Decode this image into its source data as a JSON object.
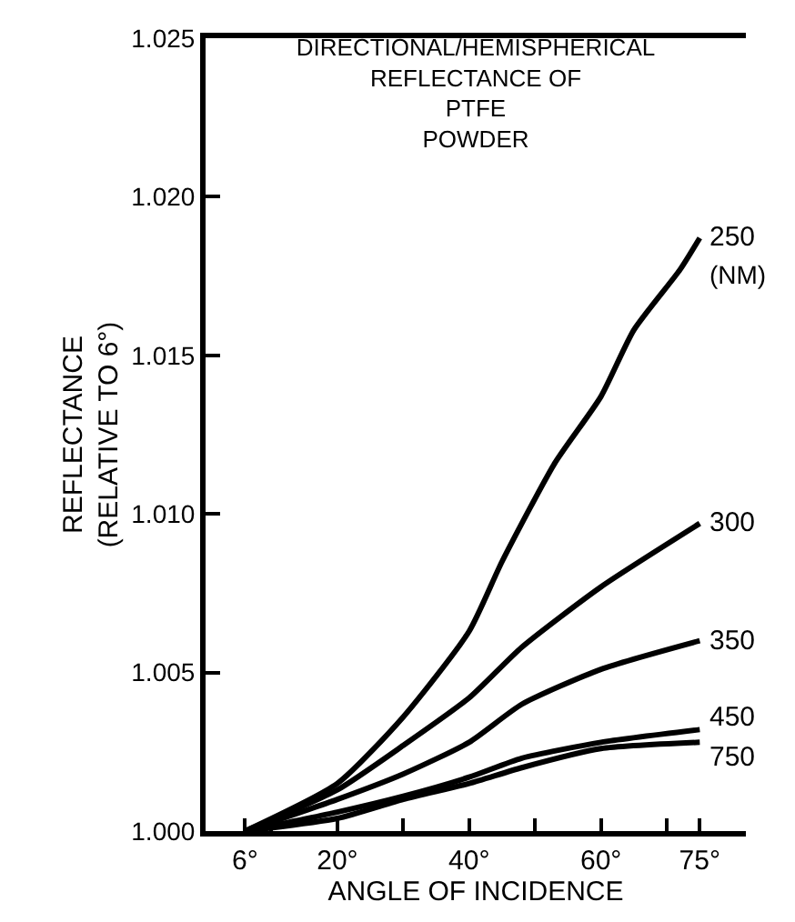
{
  "chart_data": {
    "type": "line",
    "title": "DIRECTIONAL/HEMISPHERICAL\nREFLECTANCE OF\nPTFE\nPOWDER",
    "xlabel": "ANGLE OF INCIDENCE",
    "ylabel": "REFLECTANCE\n(RELATIVE TO 6°)",
    "x": [
      6,
      20,
      30,
      40,
      48,
      60,
      75
    ],
    "series": [
      {
        "name": "250",
        "color": "#000000",
        "x": [
          6,
          20,
          30,
          40,
          45,
          53,
          60,
          65,
          72,
          75
        ],
        "values": [
          1.0,
          1.0015,
          1.0036,
          1.0063,
          1.0085,
          1.0116,
          1.0137,
          1.0158,
          1.0177,
          1.0187
        ]
      },
      {
        "name": "300",
        "color": "#000000",
        "values": [
          1.0,
          1.0013,
          1.0027,
          1.0042,
          1.0058,
          1.0077,
          1.0097
        ]
      },
      {
        "name": "350",
        "color": "#000000",
        "values": [
          1.0,
          1.001,
          1.0018,
          1.0028,
          1.004,
          1.0051,
          1.006
        ]
      },
      {
        "name": "450",
        "color": "#000000",
        "values": [
          1.0,
          1.0006,
          1.0011,
          1.0017,
          1.0023,
          1.0028,
          1.0032
        ]
      },
      {
        "name": "750",
        "color": "#000000",
        "values": [
          1.0,
          1.0004,
          1.001,
          1.0015,
          1.002,
          1.0026,
          1.0028
        ]
      }
    ],
    "annotations": [
      "(NM)"
    ],
    "xlim": [
      0,
      82
    ],
    "xticks": [
      {
        "value": 6,
        "label": "6°"
      },
      {
        "value": 10,
        "label": null
      },
      {
        "value": 20,
        "label": "20°"
      },
      {
        "value": 30,
        "label": null
      },
      {
        "value": 40,
        "label": "40°"
      },
      {
        "value": 50,
        "label": null
      },
      {
        "value": 60,
        "label": "60°"
      },
      {
        "value": 70,
        "label": null
      },
      {
        "value": 75,
        "label": "75°"
      }
    ],
    "ylim": [
      1.0,
      1.025
    ],
    "yticks": [
      {
        "value": 1.0,
        "label": "1.000"
      },
      {
        "value": 1.005,
        "label": "1.005"
      },
      {
        "value": 1.01,
        "label": "1.010"
      },
      {
        "value": 1.015,
        "label": "1.015"
      },
      {
        "value": 1.02,
        "label": "1.020"
      },
      {
        "value": 1.025,
        "label": "1.025"
      }
    ],
    "legend": false,
    "marker": "none",
    "line_style": "solid"
  }
}
